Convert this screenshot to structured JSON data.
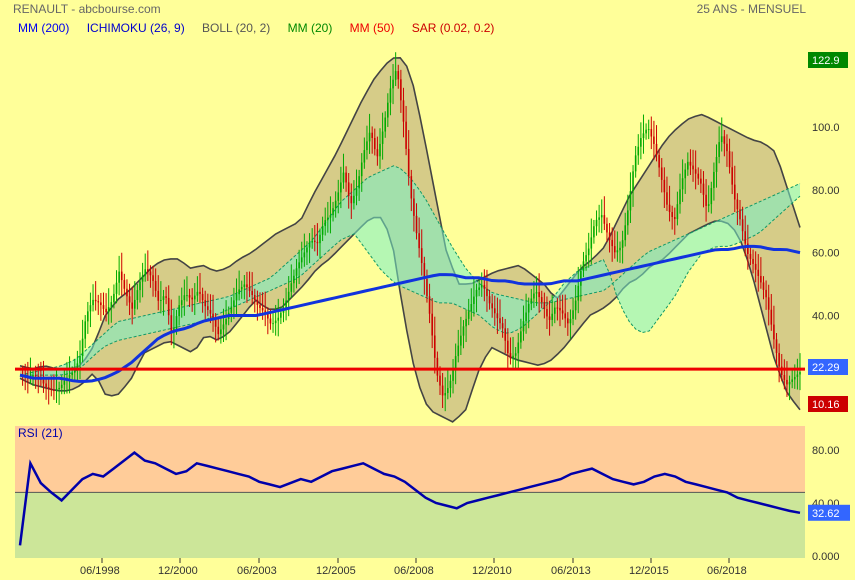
{
  "header": {
    "title": "RENAULT - abcbourse.com",
    "period": "25 ANS - MENSUEL"
  },
  "legend": [
    {
      "label": "MM (200)",
      "color": "#0000ee"
    },
    {
      "label": "ICHIMOKU (26, 9)",
      "color": "#0000cc"
    },
    {
      "label": "BOLL (20, 2)",
      "color": "#555555"
    },
    {
      "label": "MM (20)",
      "color": "#008800"
    },
    {
      "label": "MM (50)",
      "color": "#ee0000"
    },
    {
      "label": "SAR (0.02, 0.2)",
      "color": "#cc0000"
    }
  ],
  "chart_data": [
    {
      "type": "candlestick",
      "y_ticks": [
        "100.0",
        "80.00",
        "60.00",
        "40.00"
      ],
      "ylim": [
        10,
        123
      ],
      "x_ticks": [
        "06/1998",
        "12/2000",
        "06/2003",
        "12/2005",
        "06/2008",
        "12/2010",
        "06/2013",
        "12/2015",
        "06/2018"
      ],
      "badges": [
        {
          "label": "122.9",
          "color": "#008800"
        },
        {
          "label": "22.29",
          "color": "#3366ff"
        },
        {
          "label": "10.16",
          "color": "#cc0000"
        }
      ],
      "sar_level": 22.9,
      "price": [
        21,
        20,
        21,
        20,
        17,
        16,
        17,
        20,
        22,
        26,
        40,
        45,
        44,
        41,
        45,
        54,
        47,
        42,
        50,
        55,
        52,
        44,
        47,
        33,
        43,
        47,
        45,
        48,
        43,
        40,
        34,
        38,
        43,
        48,
        50,
        47,
        43,
        41,
        37,
        39,
        43,
        50,
        56,
        60,
        64,
        63,
        70,
        72,
        78,
        86,
        75,
        81,
        92,
        99,
        90,
        100,
        112,
        119,
        102,
        80,
        66,
        54,
        40,
        22,
        14,
        18,
        28,
        36,
        42,
        48,
        50,
        44,
        40,
        36,
        26,
        28,
        37,
        44,
        48,
        44,
        38,
        43,
        41,
        37,
        44,
        56,
        61,
        70,
        72,
        65,
        60,
        62,
        74,
        90,
        97,
        100,
        94,
        84,
        74,
        70,
        82,
        89,
        86,
        82,
        73,
        86,
        98,
        92,
        78,
        70,
        60,
        56,
        51,
        45,
        33,
        22,
        18,
        20,
        22
      ],
      "mm200": [
        21,
        20,
        20,
        20,
        19,
        19,
        20,
        22,
        25,
        29,
        33,
        35,
        36,
        38,
        39,
        40,
        40,
        40,
        41,
        42,
        43,
        44,
        45,
        46,
        47,
        48,
        49,
        50,
        51,
        52,
        53,
        53,
        52,
        52,
        51,
        51,
        50,
        50,
        50,
        51,
        51,
        52,
        53,
        54,
        55,
        56,
        57,
        58,
        59,
        60,
        61,
        61,
        62,
        62,
        61,
        61,
        60
      ],
      "boll_upper": [
        24,
        23,
        24,
        23,
        23,
        24,
        30,
        40,
        45,
        48,
        52,
        56,
        58,
        58,
        55,
        56,
        54,
        55,
        58,
        60,
        63,
        66,
        68,
        70,
        78,
        85,
        92,
        100,
        108,
        115,
        120,
        123,
        118,
        100,
        80,
        60,
        50,
        50,
        52,
        54,
        55,
        56,
        53,
        50,
        45,
        50,
        55,
        58,
        62,
        70,
        78,
        84,
        90,
        96,
        100,
        103,
        104,
        102,
        100,
        98,
        96,
        95,
        92,
        80,
        68
      ],
      "boll_lower": [
        20,
        18,
        17,
        16,
        16,
        18,
        22,
        14,
        15,
        20,
        28,
        30,
        32,
        30,
        28,
        34,
        32,
        35,
        40,
        45,
        42,
        42,
        46,
        50,
        55,
        58,
        62,
        66,
        70,
        72,
        65,
        40,
        20,
        10,
        8,
        6,
        10,
        22,
        30,
        28,
        26,
        25,
        24,
        26,
        30,
        35,
        40,
        42,
        45,
        50,
        52,
        56,
        58,
        62,
        66,
        68,
        70,
        70,
        66,
        55,
        40,
        25,
        15,
        10
      ],
      "cloud_a": [
        21,
        22,
        23,
        24,
        26,
        30,
        34,
        38,
        39,
        40,
        41,
        42,
        43,
        44,
        45,
        46,
        48,
        50,
        52,
        56,
        60,
        64,
        70,
        76,
        80,
        84,
        86,
        88,
        84,
        78,
        70,
        62,
        55,
        50,
        47,
        46,
        45,
        44,
        44,
        45,
        46,
        47,
        48,
        52,
        56,
        60,
        62,
        64,
        66,
        68,
        70,
        72,
        74,
        76,
        78,
        80,
        82
      ],
      "cloud_b": [
        21,
        21,
        21,
        21,
        22,
        26,
        30,
        32,
        33,
        34,
        35,
        36,
        37,
        38,
        40,
        42,
        44,
        46,
        48,
        50,
        52,
        56,
        60,
        64,
        66,
        60,
        54,
        50,
        48,
        46,
        44,
        44,
        42,
        40,
        36,
        34,
        36,
        40,
        44,
        50,
        54,
        56,
        58,
        44,
        36,
        34,
        40,
        46,
        54,
        60,
        62,
        62,
        64,
        66,
        70,
        74,
        78
      ]
    },
    {
      "type": "line",
      "title": "RSI (21)",
      "y_ticks": [
        "80.00",
        "40.00",
        "0.000"
      ],
      "ylim": [
        0,
        100
      ],
      "reference_level": 48,
      "badge": {
        "label": "32.62",
        "color": "#3366ff"
      },
      "values": [
        8,
        70,
        55,
        48,
        42,
        50,
        58,
        62,
        60,
        66,
        72,
        78,
        72,
        70,
        66,
        62,
        64,
        70,
        68,
        66,
        64,
        62,
        60,
        56,
        54,
        52,
        55,
        58,
        56,
        60,
        64,
        66,
        68,
        70,
        66,
        62,
        60,
        56,
        50,
        44,
        40,
        38,
        36,
        40,
        42,
        44,
        46,
        48,
        50,
        52,
        54,
        56,
        58,
        62,
        64,
        66,
        62,
        58,
        56,
        54,
        56,
        60,
        62,
        60,
        56,
        54,
        52,
        50,
        48,
        44,
        42,
        40,
        38,
        36,
        34,
        32.62
      ]
    }
  ]
}
